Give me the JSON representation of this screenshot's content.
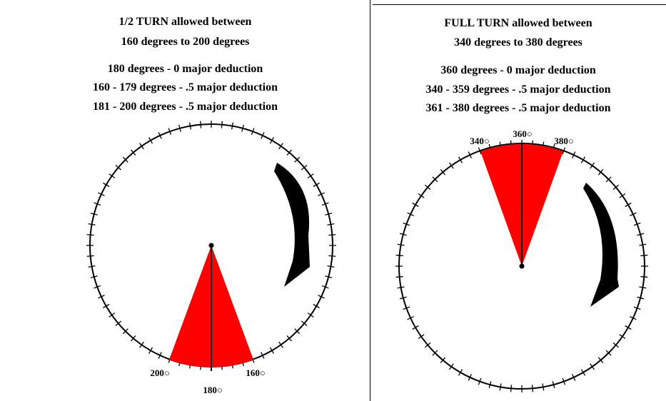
{
  "panels": {
    "half_turn": {
      "title_line1": "1/2 TURN allowed between",
      "title_line2": "160 degrees to 200 degrees",
      "rules": [
        "180 degrees - 0 major deduction",
        "160 - 179 degrees - .5 major deduction",
        "181 - 200 degrees - .5 major deduction"
      ],
      "labels": {
        "low": "200○",
        "center": "180○",
        "high": "160○"
      },
      "sector_color": "#ff0000"
    },
    "full_turn": {
      "title_line1": "FULL TURN allowed between",
      "title_line2": "340 degrees to 380 degrees",
      "rules": [
        "360 degrees - 0 major deduction",
        "340 - 359 degrees - .5 major deduction",
        "361 - 380 degrees - .5 major deduction"
      ],
      "labels": {
        "low": "340○",
        "center": "360○",
        "high": "380○"
      },
      "sector_color": "#ff0000"
    }
  },
  "icons": [
    "clockwise-arrow-icon",
    "clockwise-arrow-icon"
  ]
}
